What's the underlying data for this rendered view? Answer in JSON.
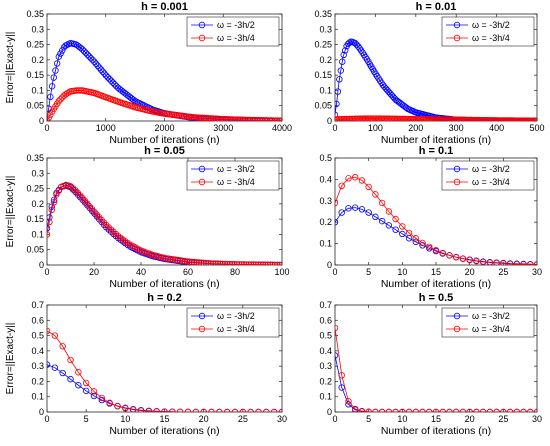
{
  "colors": {
    "series1": "#0000ff",
    "series2": "#ff0000"
  },
  "chart_data": [
    {
      "type": "line",
      "title": "h = 0.001",
      "xlabel": "Number of iterations (n)",
      "ylabel": "Error=||Exact-y||",
      "xlim": [
        0,
        4000
      ],
      "ylim": [
        0,
        0.35
      ],
      "xticks": [
        0,
        1000,
        2000,
        3000,
        4000
      ],
      "yticks": [
        0,
        0.05,
        0.1,
        0.15,
        0.2,
        0.25,
        0.3,
        0.35
      ],
      "xtick_labels": [
        "0",
        "1000",
        "2000",
        "3000",
        "4000"
      ],
      "ytick_labels": [
        "0",
        "0.05",
        "0.1",
        "0.15",
        "0.2",
        "0.25",
        "0.3",
        "0.35"
      ],
      "legend": "top-right",
      "series": [
        {
          "name": "ω = -3h/2",
          "color": "#0000ff",
          "x": [
            0,
            50,
            100,
            200,
            300,
            400,
            500,
            600,
            800,
            1000,
            1200,
            1500,
            1800,
            2000,
            2500,
            3000,
            3500,
            4000
          ],
          "y": [
            0,
            0.07,
            0.13,
            0.21,
            0.245,
            0.255,
            0.25,
            0.235,
            0.195,
            0.15,
            0.11,
            0.065,
            0.037,
            0.025,
            0.01,
            0.004,
            0.002,
            0.001
          ]
        },
        {
          "name": "ω = -3h/4",
          "color": "#ff0000",
          "x": [
            0,
            50,
            100,
            200,
            300,
            400,
            500,
            600,
            800,
            1000,
            1200,
            1500,
            1800,
            2000,
            2500,
            3000,
            3500,
            4000
          ],
          "y": [
            0,
            0.018,
            0.035,
            0.065,
            0.085,
            0.097,
            0.1,
            0.1,
            0.092,
            0.078,
            0.064,
            0.045,
            0.031,
            0.024,
            0.012,
            0.006,
            0.003,
            0.001
          ]
        }
      ]
    },
    {
      "type": "line",
      "title": "h = 0.01",
      "xlabel": "Number of iterations (n)",
      "ylabel": "",
      "xlim": [
        0,
        500
      ],
      "ylim": [
        0,
        0.35
      ],
      "xticks": [
        0,
        100,
        200,
        300,
        400,
        500
      ],
      "yticks": [
        0,
        0.05,
        0.1,
        0.15,
        0.2,
        0.25,
        0.3,
        0.35
      ],
      "xtick_labels": [
        "0",
        "100",
        "200",
        "300",
        "400",
        "500"
      ],
      "ytick_labels": [
        "0",
        "0.05",
        "0.1",
        "0.15",
        "0.2",
        "0.25",
        "0.3",
        "0.35"
      ],
      "legend": "top-right",
      "series": [
        {
          "name": "ω = -3h/2",
          "color": "#0000ff",
          "x": [
            0,
            5,
            10,
            20,
            30,
            40,
            50,
            60,
            80,
            100,
            120,
            150,
            180,
            200,
            250,
            300,
            400,
            500
          ],
          "y": [
            0.02,
            0.07,
            0.13,
            0.21,
            0.25,
            0.26,
            0.255,
            0.24,
            0.2,
            0.155,
            0.115,
            0.07,
            0.04,
            0.028,
            0.011,
            0.004,
            0.001,
            0
          ]
        },
        {
          "name": "ω = -3h/4",
          "color": "#ff0000",
          "x": [
            0,
            20,
            50,
            80,
            100,
            150,
            200,
            250,
            300,
            400,
            500
          ],
          "y": [
            0.005,
            0.006,
            0.007,
            0.008,
            0.008,
            0.007,
            0.006,
            0.005,
            0.004,
            0.002,
            0.001
          ]
        }
      ]
    },
    {
      "type": "line",
      "title": "h = 0.05",
      "xlabel": "Number of iterations (n)",
      "ylabel": "Error=||Exact-y||",
      "xlim": [
        0,
        100
      ],
      "ylim": [
        0,
        0.35
      ],
      "xticks": [
        0,
        20,
        40,
        60,
        80,
        100
      ],
      "yticks": [
        0,
        0.05,
        0.1,
        0.15,
        0.2,
        0.25,
        0.3,
        0.35
      ],
      "xtick_labels": [
        "0",
        "20",
        "40",
        "60",
        "80",
        "100"
      ],
      "ytick_labels": [
        "0",
        "0.05",
        "0.1",
        "0.15",
        "0.2",
        "0.25",
        "0.3",
        "0.35"
      ],
      "legend": "top-right",
      "series": [
        {
          "name": "ω = -3h/2",
          "color": "#0000ff",
          "x": [
            0,
            2,
            4,
            6,
            8,
            10,
            12,
            15,
            20,
            25,
            30,
            35,
            40,
            45,
            50,
            60,
            70,
            80,
            90,
            100
          ],
          "y": [
            0.12,
            0.19,
            0.235,
            0.255,
            0.26,
            0.255,
            0.24,
            0.215,
            0.17,
            0.125,
            0.09,
            0.062,
            0.042,
            0.029,
            0.02,
            0.009,
            0.004,
            0.002,
            0.001,
            0
          ]
        },
        {
          "name": "ω = -3h/4",
          "color": "#ff0000",
          "x": [
            0,
            2,
            4,
            6,
            8,
            10,
            12,
            15,
            20,
            25,
            30,
            35,
            40,
            45,
            50,
            60,
            70,
            80,
            90,
            100
          ],
          "y": [
            0.1,
            0.18,
            0.23,
            0.255,
            0.262,
            0.258,
            0.245,
            0.22,
            0.175,
            0.132,
            0.096,
            0.068,
            0.047,
            0.033,
            0.023,
            0.011,
            0.005,
            0.002,
            0.001,
            0
          ]
        }
      ]
    },
    {
      "type": "line",
      "title": "h = 0.1",
      "xlabel": "Number of iterations (n)",
      "ylabel": "",
      "xlim": [
        0,
        30
      ],
      "ylim": [
        0,
        0.5
      ],
      "xticks": [
        0,
        5,
        10,
        15,
        20,
        25,
        30
      ],
      "yticks": [
        0,
        0.1,
        0.2,
        0.3,
        0.4,
        0.5
      ],
      "xtick_labels": [
        "0",
        "5",
        "10",
        "15",
        "20",
        "25",
        "30"
      ],
      "ytick_labels": [
        "0",
        "0.1",
        "0.2",
        "0.3",
        "0.4",
        "0.5"
      ],
      "legend": "top-right",
      "series": [
        {
          "name": "ω = -3h/2",
          "color": "#0000ff",
          "x": [
            0,
            1,
            2,
            3,
            4,
            5,
            6,
            7,
            8,
            9,
            10,
            11,
            12,
            13,
            14,
            15,
            16,
            17,
            18,
            19,
            20,
            21,
            22,
            23,
            24,
            25,
            26,
            27,
            28,
            29,
            30
          ],
          "y": [
            0.2,
            0.245,
            0.265,
            0.268,
            0.26,
            0.245,
            0.225,
            0.205,
            0.185,
            0.165,
            0.145,
            0.125,
            0.108,
            0.092,
            0.078,
            0.065,
            0.054,
            0.045,
            0.037,
            0.03,
            0.025,
            0.02,
            0.016,
            0.013,
            0.011,
            0.009,
            0.007,
            0.006,
            0.005,
            0.004,
            0.003
          ]
        },
        {
          "name": "ω = -3h/4",
          "color": "#ff0000",
          "x": [
            0,
            1,
            2,
            3,
            4,
            5,
            6,
            7,
            8,
            9,
            10,
            11,
            12,
            13,
            14,
            15,
            16,
            17,
            18,
            19,
            20,
            21,
            22,
            23,
            24,
            25,
            26,
            27,
            28,
            29,
            30
          ],
          "y": [
            0.29,
            0.37,
            0.405,
            0.41,
            0.395,
            0.365,
            0.33,
            0.29,
            0.25,
            0.215,
            0.18,
            0.15,
            0.125,
            0.103,
            0.085,
            0.069,
            0.056,
            0.045,
            0.036,
            0.029,
            0.023,
            0.018,
            0.014,
            0.011,
            0.009,
            0.007,
            0.005,
            0.004,
            0.003,
            0.002,
            0.002
          ]
        }
      ]
    },
    {
      "type": "line",
      "title": "h = 0.2",
      "xlabel": "Number of iterations (n)",
      "ylabel": "Error=||Exact-y||",
      "xlim": [
        0,
        30
      ],
      "ylim": [
        0,
        0.7
      ],
      "xticks": [
        0,
        5,
        10,
        15,
        20,
        25,
        30
      ],
      "yticks": [
        0,
        0.1,
        0.2,
        0.3,
        0.4,
        0.5,
        0.6,
        0.7
      ],
      "xtick_labels": [
        "0",
        "5",
        "10",
        "15",
        "20",
        "25",
        "30"
      ],
      "ytick_labels": [
        "0",
        "0.1",
        "0.2",
        "0.3",
        "0.4",
        "0.5",
        "0.6",
        "0.7"
      ],
      "legend": "top-right",
      "series": [
        {
          "name": "ω = -3h/2",
          "color": "#0000ff",
          "x": [
            0,
            1,
            2,
            3,
            4,
            5,
            6,
            7,
            8,
            9,
            10,
            11,
            12,
            13,
            14,
            15,
            16,
            17,
            18,
            19,
            20,
            21,
            22,
            23,
            24,
            25,
            26,
            27,
            28,
            29,
            30
          ],
          "y": [
            0.31,
            0.29,
            0.255,
            0.215,
            0.175,
            0.138,
            0.105,
            0.078,
            0.056,
            0.039,
            0.027,
            0.018,
            0.012,
            0.008,
            0.005,
            0.003,
            0.002,
            0.001,
            0.001,
            0,
            0,
            0,
            0,
            0,
            0,
            0,
            0,
            0,
            0,
            0,
            0
          ]
        },
        {
          "name": "ω = -3h/4",
          "color": "#ff0000",
          "x": [
            0,
            1,
            2,
            3,
            4,
            5,
            6,
            7,
            8,
            9,
            10,
            11,
            12,
            13,
            14,
            15,
            16,
            17,
            18,
            19,
            20,
            21,
            22,
            23,
            24,
            25,
            26,
            27,
            28,
            29,
            30
          ],
          "y": [
            0.53,
            0.5,
            0.43,
            0.34,
            0.26,
            0.19,
            0.135,
            0.092,
            0.06,
            0.038,
            0.024,
            0.015,
            0.009,
            0.005,
            0.003,
            0.002,
            0.001,
            0.001,
            0,
            0,
            0,
            0,
            0,
            0,
            0,
            0,
            0,
            0,
            0,
            0,
            0
          ]
        }
      ]
    },
    {
      "type": "line",
      "title": "h = 0.5",
      "xlabel": "Number of iterations (n)",
      "ylabel": "",
      "xlim": [
        0,
        30
      ],
      "ylim": [
        0,
        0.7
      ],
      "xticks": [
        0,
        5,
        10,
        15,
        20,
        25,
        30
      ],
      "yticks": [
        0,
        0.1,
        0.2,
        0.3,
        0.4,
        0.5,
        0.6,
        0.7
      ],
      "xtick_labels": [
        "0",
        "5",
        "10",
        "15",
        "20",
        "25",
        "30"
      ],
      "ytick_labels": [
        "0",
        "0.1",
        "0.2",
        "0.3",
        "0.4",
        "0.5",
        "0.6",
        "0.7"
      ],
      "legend": "top-right",
      "series": [
        {
          "name": "ω = -3h/2",
          "color": "#0000ff",
          "x": [
            0,
            1,
            2,
            3,
            4,
            5,
            6,
            7,
            8,
            9,
            10,
            11,
            12,
            13,
            14,
            15,
            16,
            17,
            18,
            19,
            20,
            21,
            22,
            23,
            24,
            25,
            26,
            27,
            28,
            29,
            30
          ],
          "y": [
            0.37,
            0.16,
            0.05,
            0.015,
            0.004,
            0.001,
            0,
            0,
            0,
            0,
            0,
            0,
            0,
            0,
            0,
            0,
            0,
            0,
            0,
            0,
            0,
            0,
            0,
            0,
            0,
            0,
            0,
            0,
            0,
            0,
            0
          ]
        },
        {
          "name": "ω = -3h/4",
          "color": "#ff0000",
          "x": [
            0,
            1,
            2,
            3,
            4,
            5,
            6,
            7,
            8,
            9,
            10,
            11,
            12,
            13,
            14,
            15,
            16,
            17,
            18,
            19,
            20,
            21,
            22,
            23,
            24,
            25,
            26,
            27,
            28,
            29,
            30
          ],
          "y": [
            0.55,
            0.24,
            0.07,
            0.02,
            0.006,
            0.002,
            0,
            0,
            0,
            0,
            0,
            0,
            0,
            0,
            0,
            0,
            0,
            0,
            0,
            0,
            0,
            0,
            0,
            0,
            0,
            0,
            0,
            0,
            0,
            0,
            0
          ]
        }
      ]
    }
  ]
}
